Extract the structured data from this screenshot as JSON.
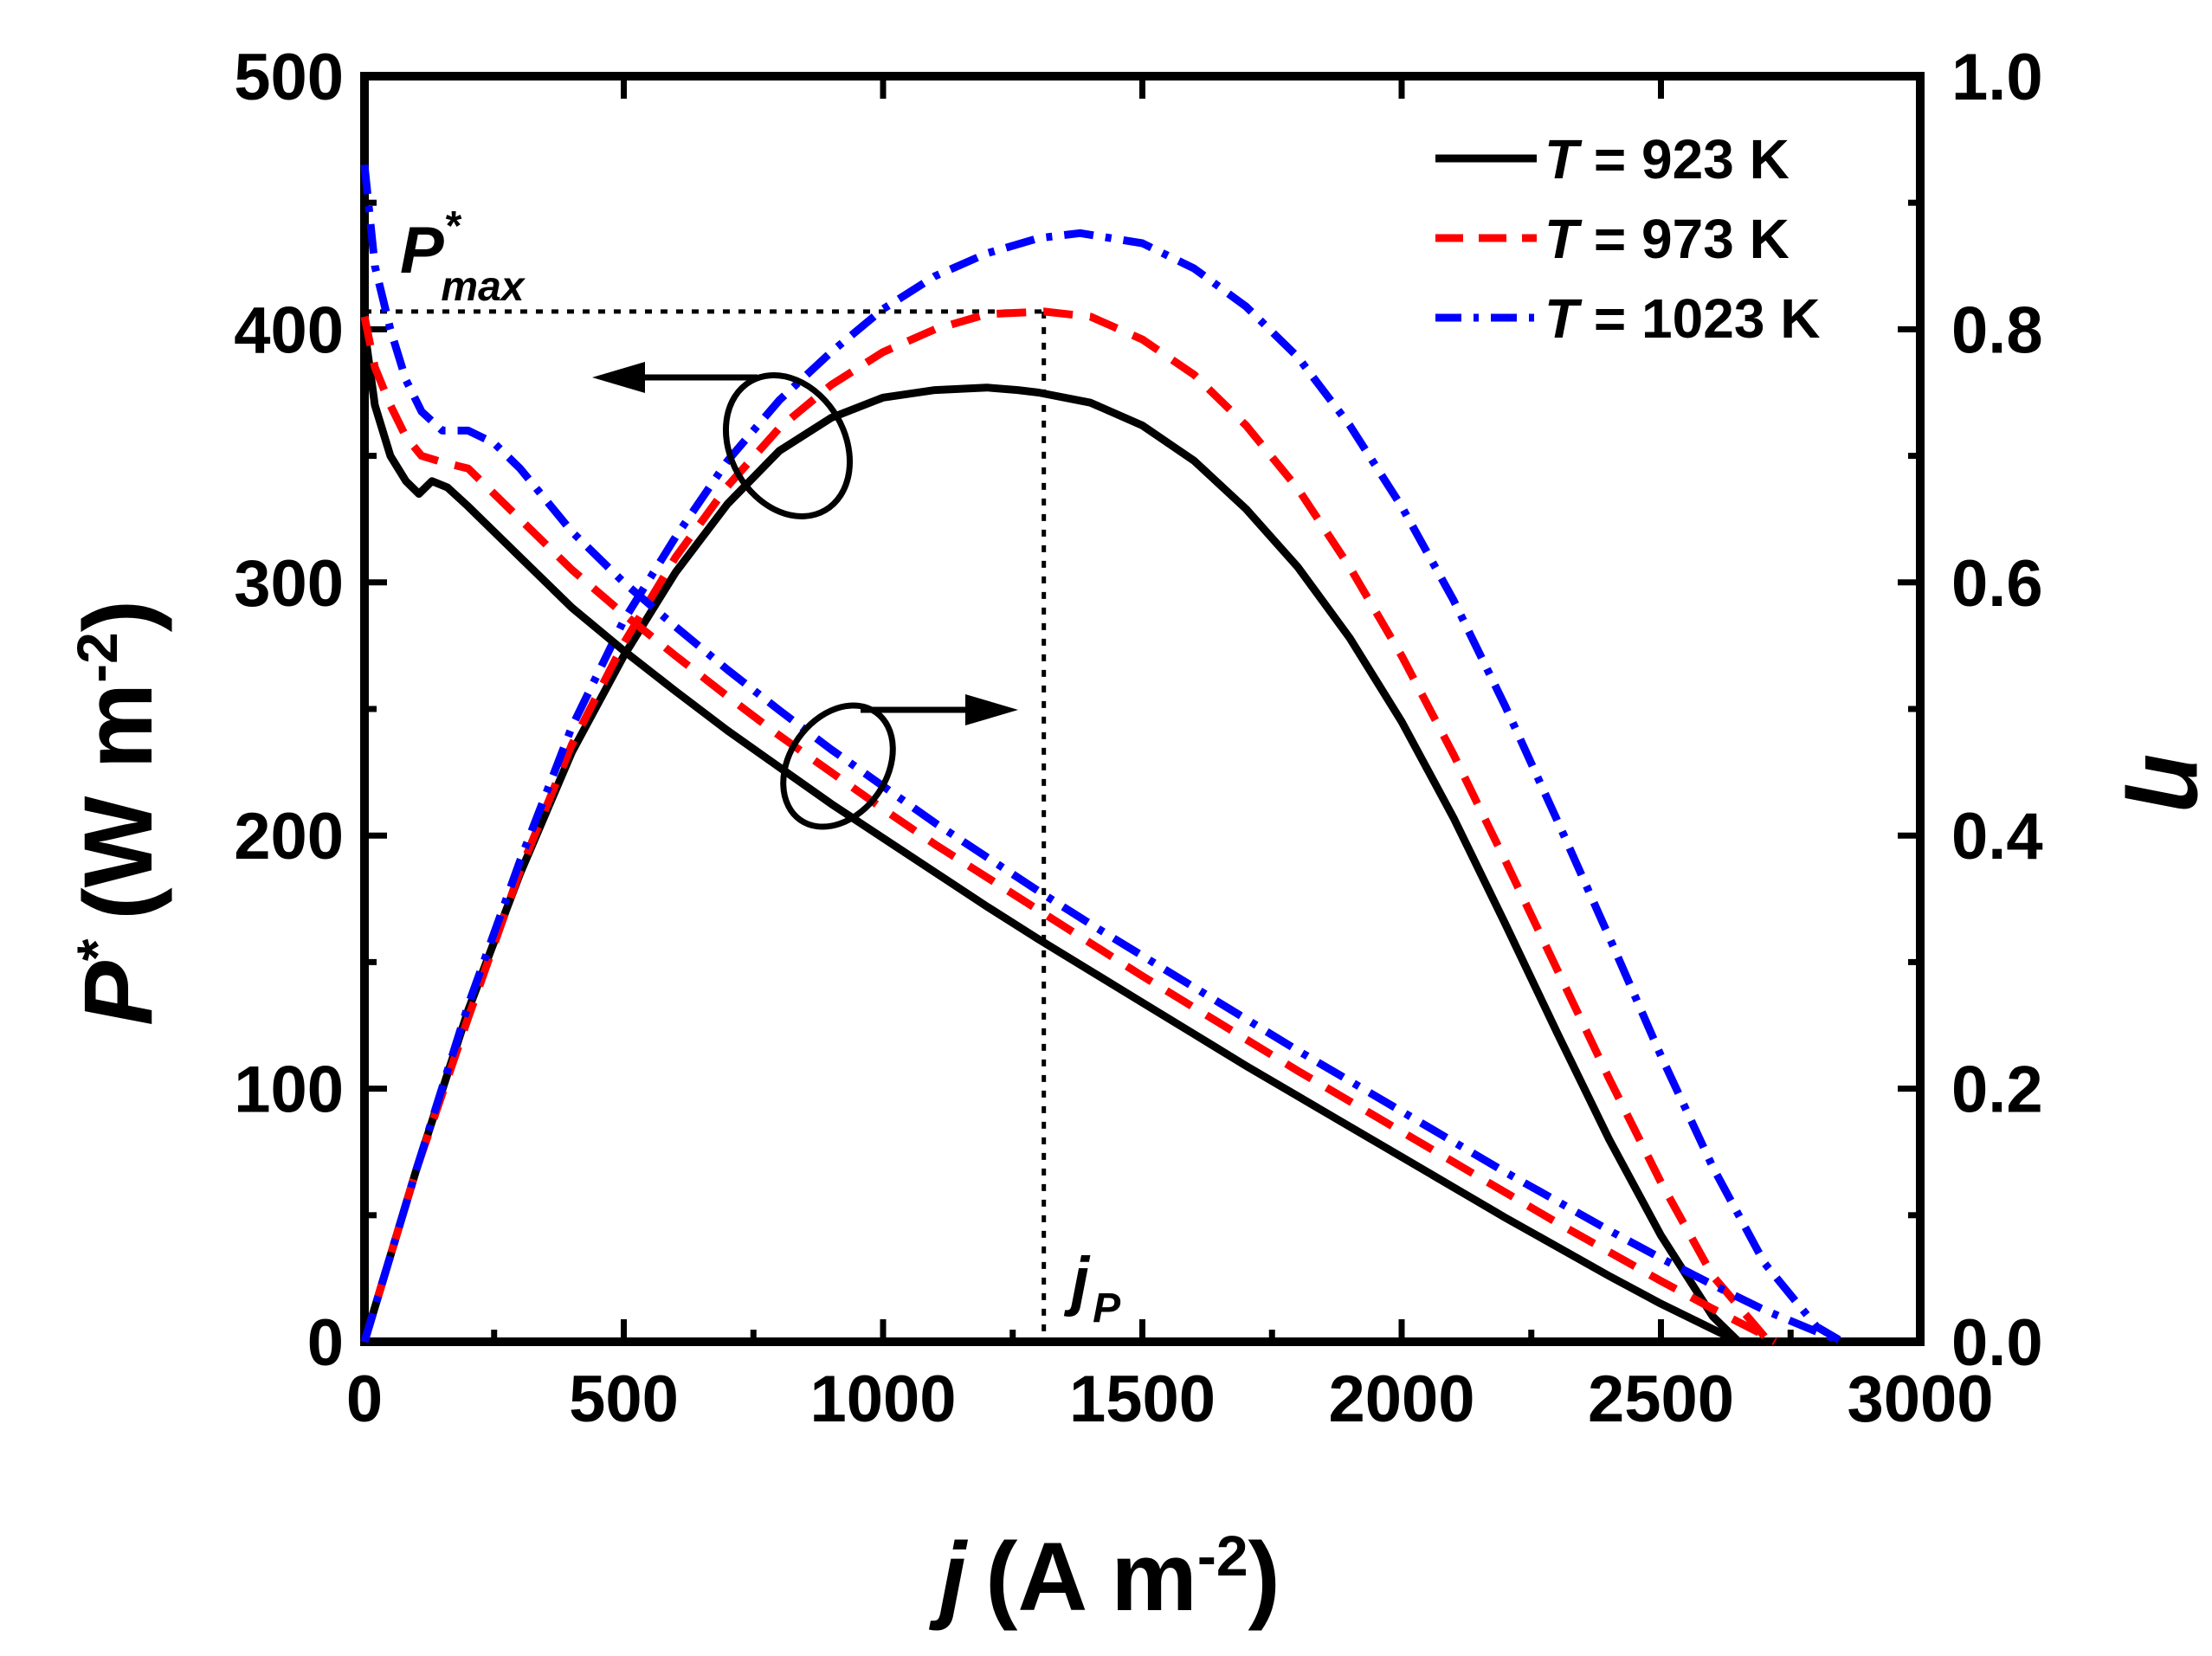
{
  "chart_data": {
    "type": "line",
    "title": "",
    "xlabel": {
      "var": "j",
      "unit": "(A m",
      "exp": "-2",
      "close": ")"
    },
    "ylabel_left": {
      "var": "P",
      "sup": "*",
      "unit": "(W m",
      "exp": "-2",
      "close": ")"
    },
    "ylabel_right": "η",
    "xlim": [
      0,
      3000
    ],
    "ylim_left": [
      0,
      500
    ],
    "ylim_right": [
      0,
      1.0
    ],
    "x_ticks": [
      "0",
      "500",
      "1000",
      "1500",
      "2000",
      "2500",
      "3000"
    ],
    "y_left_ticks": [
      "0",
      "100",
      "200",
      "300",
      "400",
      "500"
    ],
    "y_right_ticks": [
      "0.0",
      "0.2",
      "0.4",
      "0.6",
      "0.8",
      "1.0"
    ],
    "legend": {
      "placement": "top-right",
      "entries": [
        {
          "var": "T",
          "text": " = 923 K",
          "color": "#000000",
          "style": "solid"
        },
        {
          "var": "T",
          "text": " = 973 K",
          "color": "#ff0000",
          "style": "dash"
        },
        {
          "var": "T",
          "text": " = 1023 K",
          "color": "#0000ff",
          "style": "dashdot"
        }
      ]
    },
    "annotations": {
      "pmax": {
        "base": "P",
        "sup": "*",
        "sub": "max",
        "value": 407
      },
      "jp": {
        "base": "j",
        "sub": "P",
        "value": 1310
      }
    },
    "series": [
      {
        "name": "P* T = 923 K",
        "axis": "left",
        "color": "#000000",
        "style": "solid",
        "x": [
          0,
          100,
          200,
          300,
          400,
          500,
          600,
          700,
          800,
          900,
          1000,
          1100,
          1200,
          1260,
          1300,
          1400,
          1500,
          1600,
          1700,
          1800,
          1900,
          2000,
          2100,
          2200,
          2300,
          2400,
          2500,
          2600,
          2650
        ],
        "y": [
          0,
          68,
          131,
          185,
          233,
          271,
          304,
          331,
          352,
          365,
          373,
          376,
          377,
          376,
          375,
          371,
          362,
          348,
          329,
          306,
          278,
          245,
          207,
          165,
          122,
          80,
          42,
          10,
          0
        ]
      },
      {
        "name": "P* T = 973 K",
        "axis": "left",
        "color": "#ff0000",
        "style": "dash",
        "x": [
          0,
          100,
          200,
          300,
          400,
          500,
          600,
          700,
          800,
          900,
          1000,
          1100,
          1200,
          1310,
          1400,
          1500,
          1600,
          1700,
          1800,
          1900,
          2000,
          2100,
          2200,
          2300,
          2400,
          2500,
          2600,
          2700,
          2720
        ],
        "y": [
          0,
          68,
          128,
          186,
          236,
          276,
          310,
          338,
          361,
          378,
          391,
          400,
          406,
          407,
          405,
          396,
          382,
          362,
          337,
          306,
          271,
          232,
          190,
          147,
          104,
          63,
          26,
          2,
          0
        ]
      },
      {
        "name": "P* T = 1023 K",
        "axis": "left",
        "color": "#0000ff",
        "style": "dashdot",
        "x": [
          0,
          100,
          200,
          300,
          400,
          500,
          600,
          700,
          800,
          900,
          1000,
          1100,
          1200,
          1300,
          1380,
          1500,
          1600,
          1700,
          1800,
          1900,
          2000,
          2100,
          2200,
          2300,
          2400,
          2500,
          2600,
          2700,
          2800,
          2850
        ],
        "y": [
          0,
          68,
          133,
          190,
          243,
          285,
          318,
          348,
          372,
          391,
          408,
          421,
          430,
          436,
          438,
          434,
          424,
          409,
          389,
          362,
          330,
          293,
          251,
          206,
          160,
          113,
          69,
          31,
          6,
          0
        ]
      },
      {
        "name": "η T = 923 K",
        "axis": "right",
        "color": "#000000",
        "style": "solid",
        "x": [
          0,
          20,
          50,
          80,
          105,
          130,
          160,
          200,
          300,
          400,
          500,
          600,
          700,
          800,
          900,
          1000,
          1100,
          1200,
          1300,
          1400,
          1500,
          1600,
          1700,
          1800,
          1900,
          2000,
          2100,
          2200,
          2300,
          2400,
          2500,
          2600,
          2650
        ],
        "y": [
          0.8,
          0.74,
          0.7,
          0.68,
          0.67,
          0.68,
          0.675,
          0.66,
          0.62,
          0.58,
          0.546,
          0.514,
          0.483,
          0.454,
          0.425,
          0.398,
          0.371,
          0.344,
          0.318,
          0.293,
          0.268,
          0.243,
          0.218,
          0.194,
          0.17,
          0.146,
          0.122,
          0.098,
          0.075,
          0.052,
          0.03,
          0.01,
          0.0
        ]
      },
      {
        "name": "η T = 973 K",
        "axis": "right",
        "color": "#ff0000",
        "style": "dash",
        "x": [
          0,
          20,
          50,
          80,
          110,
          150,
          200,
          300,
          400,
          500,
          600,
          700,
          800,
          900,
          1000,
          1100,
          1200,
          1300,
          1400,
          1500,
          1600,
          1700,
          1800,
          1900,
          2000,
          2100,
          2200,
          2300,
          2400,
          2500,
          2600,
          2700,
          2720
        ],
        "y": [
          0.81,
          0.77,
          0.74,
          0.715,
          0.7,
          0.695,
          0.69,
          0.65,
          0.61,
          0.575,
          0.542,
          0.51,
          0.479,
          0.45,
          0.421,
          0.393,
          0.367,
          0.341,
          0.315,
          0.289,
          0.264,
          0.239,
          0.214,
          0.19,
          0.166,
          0.142,
          0.118,
          0.094,
          0.071,
          0.048,
          0.026,
          0.005,
          0.0
        ]
      },
      {
        "name": "η T = 1023 K",
        "axis": "right",
        "color": "#0000ff",
        "style": "dashdot",
        "x": [
          0,
          20,
          50,
          80,
          110,
          150,
          200,
          250,
          300,
          400,
          500,
          600,
          700,
          800,
          900,
          1000,
          1100,
          1200,
          1300,
          1400,
          1500,
          1600,
          1700,
          1800,
          1900,
          2000,
          2100,
          2200,
          2300,
          2400,
          2500,
          2600,
          2700,
          2800,
          2850
        ],
        "y": [
          0.93,
          0.85,
          0.8,
          0.76,
          0.735,
          0.72,
          0.72,
          0.71,
          0.69,
          0.64,
          0.6,
          0.565,
          0.531,
          0.499,
          0.468,
          0.439,
          0.41,
          0.383,
          0.356,
          0.33,
          0.305,
          0.28,
          0.255,
          0.23,
          0.206,
          0.182,
          0.158,
          0.134,
          0.111,
          0.088,
          0.066,
          0.045,
          0.025,
          0.008,
          0.0
        ]
      }
    ]
  }
}
